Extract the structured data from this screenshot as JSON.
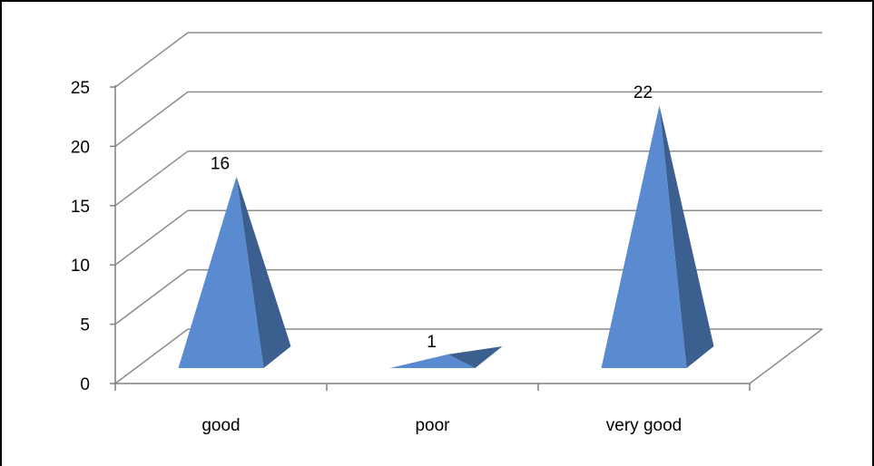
{
  "chart_data": {
    "type": "bar",
    "style": "3d-pyramid",
    "categories": [
      "good",
      "poor",
      "very good"
    ],
    "values": [
      16,
      1,
      22
    ],
    "data_labels": [
      "16",
      "1",
      "22"
    ],
    "title": "",
    "xlabel": "",
    "ylabel": "",
    "ylim": [
      0,
      25
    ],
    "yticks": [
      0,
      5,
      10,
      15,
      20,
      25
    ],
    "ytick_labels": [
      "0",
      "5",
      "10",
      "15",
      "20",
      "25"
    ],
    "grid": true,
    "legend": "none",
    "colors": {
      "pyramid_front": "#5a8bd0",
      "pyramid_side": "#3b5f8f",
      "grid": "#8c8c8c",
      "axis": "#7f7f7f",
      "frame": "#000000"
    }
  }
}
